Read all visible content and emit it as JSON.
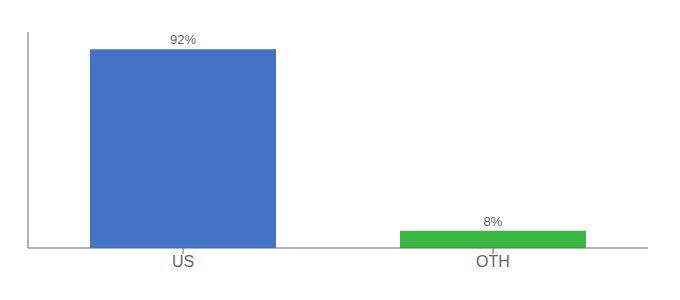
{
  "chart_data": {
    "type": "bar",
    "categories": [
      "US",
      "OTH"
    ],
    "values": [
      92,
      8
    ],
    "colors": [
      "#4472c4",
      "#3cb943"
    ],
    "value_labels": [
      "92%",
      "8%"
    ],
    "data_labels": true,
    "ylim": [
      0,
      100
    ],
    "yticks": [],
    "tick_labels": "x",
    "grid": false
  }
}
